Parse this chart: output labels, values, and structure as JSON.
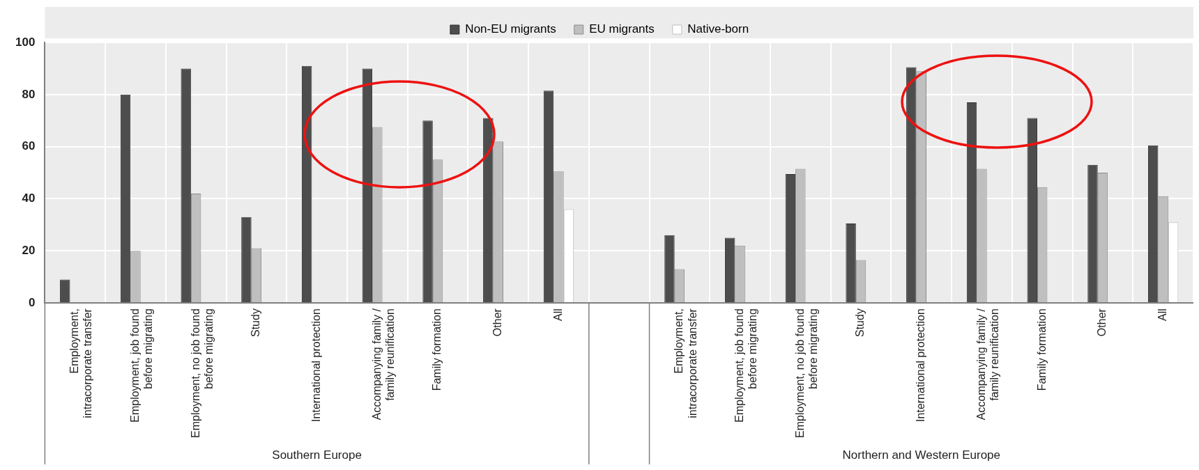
{
  "chart_data": {
    "type": "bar",
    "categories": [
      "Employment, intracorporate transfer",
      "Employment, job found before migrating",
      "Employment, no job found before migrating",
      "Study",
      "International protection",
      "Accompanying family / family reunification",
      "Family formation",
      "Other",
      "All",
      null,
      "Employment, intracorporate transfer",
      "Employment, job found before migrating",
      "Employment, no job found before migrating",
      "Study",
      "International protection",
      "Accompanying family / family reunification",
      "Family formation",
      "Other",
      "All"
    ],
    "series": [
      {
        "name": "Non-EU migrants",
        "color": "#4d4d4d",
        "values": [
          9,
          80,
          90,
          33,
          91,
          90,
          70,
          71,
          81.5,
          null,
          26,
          25,
          49.5,
          30.5,
          90.5,
          77,
          71,
          53,
          60.5
        ]
      },
      {
        "name": "EU migrants",
        "color": "#bfbfbf",
        "values": [
          null,
          20,
          42,
          21,
          null,
          67.5,
          55,
          62,
          50.5,
          null,
          13,
          22,
          51.5,
          16.5,
          89,
          51.5,
          44.5,
          50,
          41
        ]
      },
      {
        "name": "Native-born",
        "color": "#ffffff",
        "values": [
          null,
          null,
          null,
          null,
          null,
          null,
          null,
          null,
          36,
          null,
          null,
          null,
          null,
          null,
          null,
          null,
          null,
          null,
          31
        ]
      }
    ],
    "ylim": [
      0,
      100
    ],
    "yticks": [
      0,
      20,
      40,
      60,
      80,
      100
    ],
    "grid": true,
    "legend": "top",
    "annotations": [
      "Southern Europe",
      "Northern and Western Europe"
    ]
  }
}
